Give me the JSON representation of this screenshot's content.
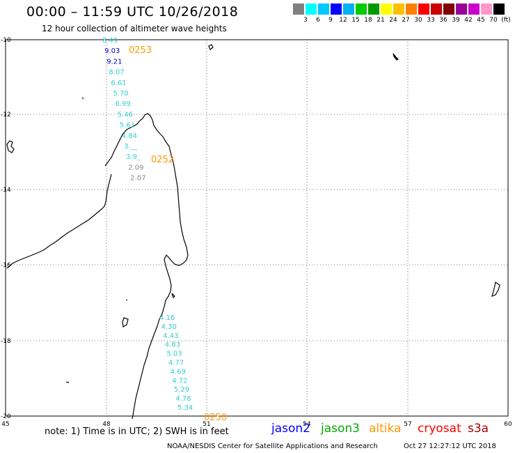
{
  "header": {
    "title": "00:00 – 11:59 UTC 10/26/2018",
    "subtitle": "12 hour collection of altimeter wave heights"
  },
  "colorbar": {
    "colors": [
      "#808080",
      "#00ffff",
      "#00c8ff",
      "#0000ff",
      "#00b0f0",
      "#00cc00",
      "#009900",
      "#ffff00",
      "#ffc000",
      "#ff8000",
      "#ff0000",
      "#cc0000",
      "#800000",
      "#990099",
      "#cc00cc",
      "#ff99cc",
      "#000000"
    ],
    "labels": [
      "3",
      "6",
      "9",
      "12",
      "15",
      "18",
      "21",
      "24",
      "27",
      "30",
      "33",
      "36",
      "39",
      "42",
      "45",
      "70",
      "(ft)"
    ]
  },
  "axes": {
    "lon_labels": [
      "45",
      "48",
      "51",
      "54",
      "57",
      "60"
    ],
    "lat_labels": [
      "-10",
      "-12",
      "-14",
      "-16",
      "-18",
      "-20"
    ]
  },
  "passes": [
    {
      "time": "0253",
      "color": "#ff9900"
    },
    {
      "time": "0252",
      "color": "#ff9900"
    },
    {
      "time": "0250",
      "color": "#ff9900"
    }
  ],
  "readings_north": [
    {
      "v": "8.49",
      "c": "#33cccc"
    },
    {
      "v": "9.03",
      "c": "#0000cc"
    },
    {
      "v": "9.21",
      "c": "#0000cc"
    },
    {
      "v": "8.07",
      "c": "#33cccc"
    },
    {
      "v": "6.61",
      "c": "#33cccc"
    },
    {
      "v": "5.70",
      "c": "#33cccc"
    },
    {
      "v": "6.99",
      "c": "#33cccc"
    },
    {
      "v": "5.46",
      "c": "#33cccc"
    },
    {
      "v": "5.61",
      "c": "#33cccc"
    },
    {
      "v": "4.84",
      "c": "#33cccc"
    },
    {
      "v": "3.__",
      "c": "#33cccc"
    },
    {
      "v": "3.9_",
      "c": "#33cccc"
    },
    {
      "v": "2.09",
      "c": "#888888"
    },
    {
      "v": "2.07",
      "c": "#888888"
    }
  ],
  "readings_south": [
    {
      "v": "4.16",
      "c": "#33cccc"
    },
    {
      "v": "4.30",
      "c": "#33cccc"
    },
    {
      "v": "4.43",
      "c": "#33cccc"
    },
    {
      "v": "4.83",
      "c": "#33cccc"
    },
    {
      "v": "5.03",
      "c": "#33cccc"
    },
    {
      "v": "4.77",
      "c": "#33cccc"
    },
    {
      "v": "4.69",
      "c": "#33cccc"
    },
    {
      "v": "4.72",
      "c": "#33cccc"
    },
    {
      "v": "5.29",
      "c": "#33cccc"
    },
    {
      "v": "4.78",
      "c": "#33cccc"
    },
    {
      "v": "5.34",
      "c": "#33cccc"
    }
  ],
  "note": "note: 1) Time is in UTC; 2) SWH is in feet",
  "satellites": [
    {
      "name": "jason2",
      "color": "#0000ff"
    },
    {
      "name": "jason3",
      "color": "#00aa00"
    },
    {
      "name": "altika",
      "color": "#ff9900"
    },
    {
      "name": "cryosat",
      "color": "#ff0000"
    },
    {
      "name": "s3a",
      "color": "#aa0000"
    }
  ],
  "footer": {
    "org": "NOAA/NESDIS Center for Satellite Applications and Research",
    "timestamp": "Oct 27 12:27:12 UTC 2018"
  }
}
